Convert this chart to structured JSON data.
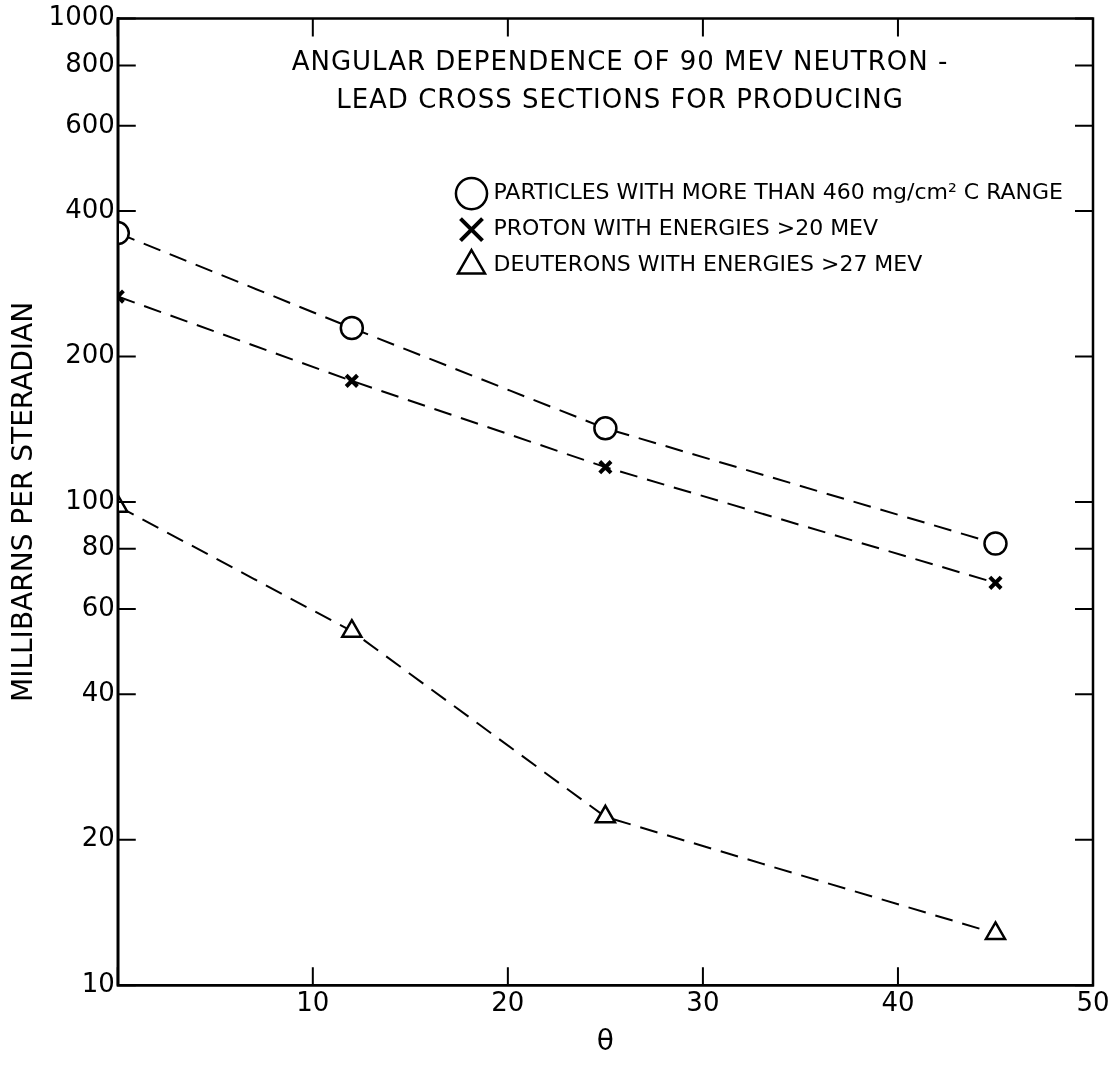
{
  "chart_data": {
    "type": "line",
    "title": "ANGULAR DEPENDENCE OF 90 MEV NEUTRON - LEAD CROSS SECTIONS FOR PRODUCING",
    "xlabel": "θ",
    "ylabel": "MILLIBARNS PER STERADIAN",
    "x": [
      0,
      12,
      25,
      45
    ],
    "series": [
      {
        "name": "PARTICLES WITH MORE THAN 460 mg/cm² C RANGE",
        "color": "#000000",
        "marker": "circle",
        "values": [
          360,
          229,
          142,
          82
        ]
      },
      {
        "name": "PROTON WITH ENERGIES >20 MEV",
        "color": "#000000",
        "marker": "cross",
        "values": [
          266,
          178,
          118,
          68
        ]
      },
      {
        "name": "DEUTERONS WITH ENERGIES >27 MEV",
        "color": "#000000",
        "marker": "triangle",
        "values": [
          98,
          54,
          22.3,
          12.8
        ]
      }
    ],
    "log": "y",
    "xlim": [
      0,
      50
    ],
    "xticks": [
      {
        "value": 0,
        "label": null
      },
      10,
      20,
      30,
      40,
      50
    ],
    "ylim": [
      10,
      1000
    ],
    "yticks": [
      10,
      20,
      40,
      60,
      80,
      100,
      200,
      400,
      600,
      800,
      1000
    ],
    "line_style": "dashed",
    "legend": "top right",
    "grid": false
  }
}
